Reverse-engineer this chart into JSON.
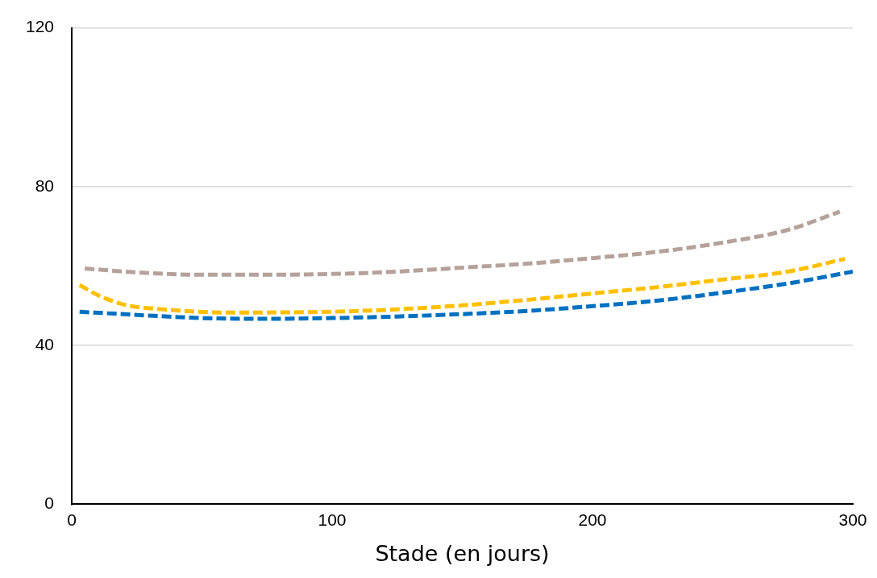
{
  "chart_data": {
    "type": "line",
    "xlabel": "Stade (en jours)",
    "xlim": [
      0,
      300
    ],
    "xticks": [
      0,
      100,
      200,
      300
    ],
    "ylim": [
      0,
      120
    ],
    "yticks": [
      0,
      40,
      80,
      120
    ],
    "grid": "y",
    "legend": false,
    "marker": "none",
    "line_style": "dashed",
    "series": [
      {
        "color": "#b5a29a",
        "x": [
          5,
          25,
          50,
          75,
          100,
          125,
          150,
          175,
          200,
          225,
          250,
          275,
          295
        ],
        "values": [
          59.4,
          58.4,
          57.8,
          57.8,
          58.0,
          58.6,
          59.6,
          60.6,
          62.0,
          63.6,
          65.9,
          69.1,
          73.7
        ]
      },
      {
        "color": "#ffc000",
        "x": [
          3,
          10,
          20,
          35,
          60,
          100,
          125,
          150,
          175,
          200,
          225,
          250,
          275,
          297
        ],
        "values": [
          55.2,
          52.7,
          50.3,
          49.1,
          48.3,
          48.5,
          49.1,
          50.1,
          51.5,
          53.1,
          54.7,
          56.6,
          58.6,
          61.8
        ]
      },
      {
        "color": "#0070c0",
        "x": [
          3,
          25,
          50,
          75,
          100,
          125,
          150,
          175,
          200,
          225,
          250,
          275,
          300
        ],
        "values": [
          48.5,
          47.7,
          46.9,
          46.7,
          46.9,
          47.3,
          47.9,
          48.7,
          49.9,
          51.3,
          53.3,
          55.6,
          58.6
        ]
      }
    ]
  }
}
